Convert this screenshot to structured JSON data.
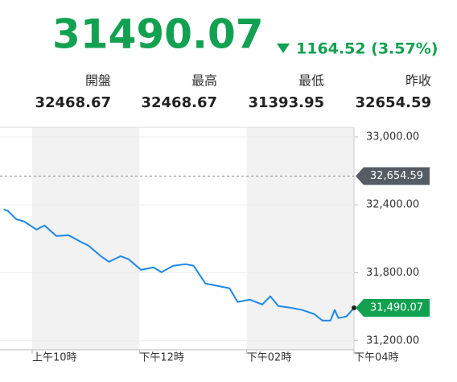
{
  "header": {
    "price": "31490.07",
    "change": "1164.52 (3.57%)",
    "stats": [
      {
        "label": "開盤",
        "value": "32468.67"
      },
      {
        "label": "最高",
        "value": "32468.67"
      },
      {
        "label": "最低",
        "value": "31393.95"
      },
      {
        "label": "昨收",
        "value": "32654.59"
      }
    ]
  },
  "chart_data": {
    "type": "line",
    "color": "#1e88e5",
    "x": [
      9.47,
      9.55,
      9.7,
      9.85,
      10.08,
      10.23,
      10.45,
      10.68,
      10.9,
      11.05,
      11.28,
      11.43,
      11.65,
      11.8,
      12.03,
      12.26,
      12.41,
      12.63,
      12.86,
      13.01,
      13.23,
      13.46,
      13.68,
      13.83,
      14.06,
      14.29,
      14.44,
      14.59,
      14.81,
      15.04,
      15.26,
      15.41,
      15.56,
      15.64,
      15.71,
      15.86,
      16.0
    ],
    "values": [
      32360,
      32346,
      32275,
      32253,
      32182,
      32218,
      32125,
      32132,
      32075,
      32040,
      31947,
      31897,
      31947,
      31919,
      31826,
      31848,
      31805,
      31862,
      31876,
      31862,
      31705,
      31684,
      31663,
      31542,
      31563,
      31520,
      31592,
      31506,
      31492,
      31471,
      31435,
      31378,
      31378,
      31471,
      31400,
      31414,
      31490.07
    ],
    "last_value_label": "31,490.07",
    "reference_line": {
      "value": 32654.59,
      "label": "32,654.59"
    },
    "xlim": [
      9.4,
      16
    ],
    "xticks": [
      {
        "value": 10,
        "label": "上午10時"
      },
      {
        "value": 12,
        "label": "下午12時"
      },
      {
        "value": 14,
        "label": "下午02時"
      },
      {
        "value": 16,
        "label": "下午04時"
      }
    ],
    "ylim": [
      31120,
      33085
    ],
    "yticks": [
      {
        "value": 33000,
        "label": "33,000.00"
      },
      {
        "value": 32400,
        "label": "32,400.00"
      },
      {
        "value": 31800,
        "label": "31,800.00"
      },
      {
        "value": 31200,
        "label": "31,200.00"
      }
    ],
    "grid": true
  }
}
